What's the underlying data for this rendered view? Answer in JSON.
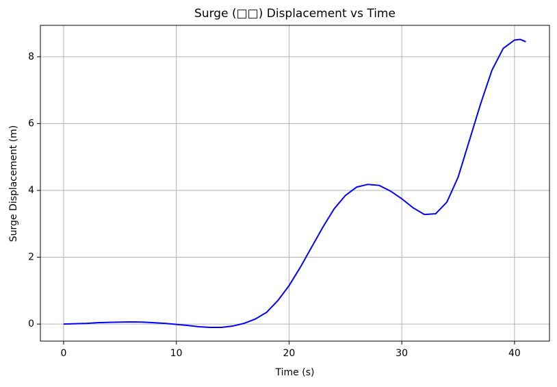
{
  "chart_data": {
    "type": "line",
    "title": "Surge (□□) Displacement vs Time",
    "x_label": "Time (s)",
    "y_label": "Surge Displacement (m)",
    "x": [
      0,
      1,
      2,
      3,
      4,
      5,
      6,
      7,
      8,
      9,
      10,
      11,
      12,
      13,
      14,
      15,
      16,
      17,
      18,
      19,
      20,
      21,
      22,
      23,
      24,
      25,
      26,
      27,
      28,
      29,
      30,
      31,
      32,
      33,
      34,
      35,
      36,
      37,
      38,
      39,
      40,
      40.5,
      41
    ],
    "series": [
      {
        "name": "Surge",
        "color": "#0000ff",
        "values": [
          0,
          0.01,
          0.02,
          0.04,
          0.05,
          0.06,
          0.065,
          0.06,
          0.04,
          0.02,
          -0.01,
          -0.04,
          -0.08,
          -0.1,
          -0.1,
          -0.06,
          0.02,
          0.15,
          0.35,
          0.7,
          1.15,
          1.7,
          2.3,
          2.9,
          3.45,
          3.85,
          4.1,
          4.18,
          4.15,
          3.98,
          3.75,
          3.48,
          3.28,
          3.3,
          3.65,
          4.4,
          5.5,
          6.6,
          7.6,
          8.25,
          8.5,
          8.52,
          8.45
        ]
      }
    ],
    "xlim": [
      -2.06,
      43.1
    ],
    "xticks": [
      0,
      10,
      20,
      30,
      40
    ],
    "ylim": [
      -0.51,
      8.94
    ],
    "yticks": [
      0,
      2,
      4,
      6,
      8
    ],
    "grid": true
  }
}
